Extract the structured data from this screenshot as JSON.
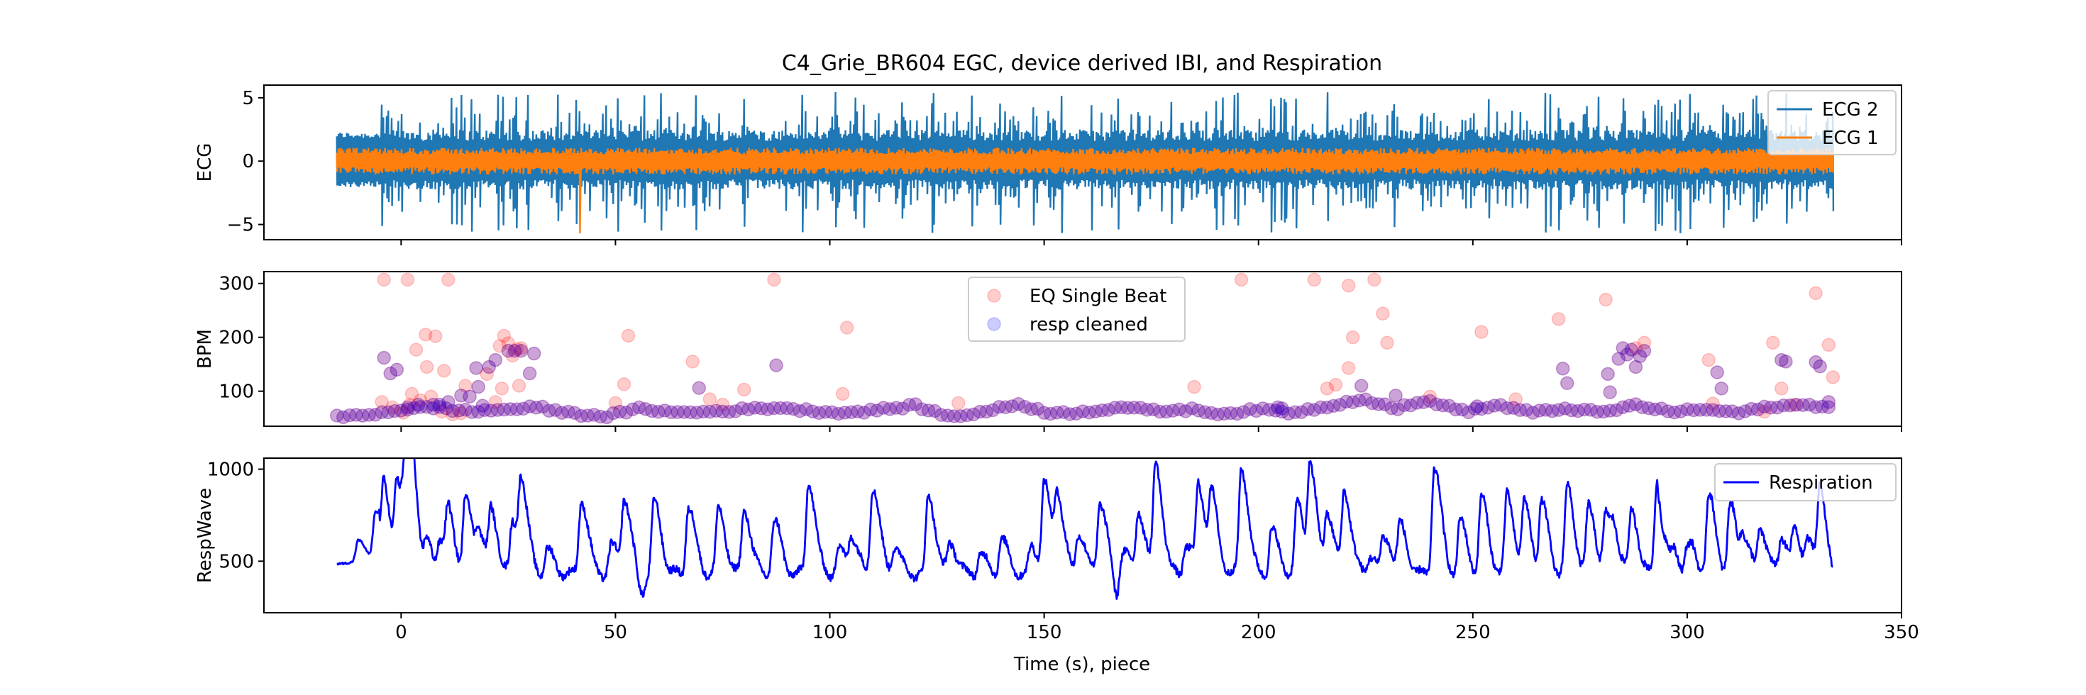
{
  "chart_data": {
    "type": "line",
    "title": "C4_Grie_BR604 EGC, device derived IBI, and Respiration",
    "xlabel": "Time (s), piece",
    "xlim": [
      -32,
      350
    ],
    "xticks": [
      0,
      50,
      100,
      150,
      200,
      250,
      300,
      350
    ],
    "xtick_labels": [
      "0",
      "50",
      "100",
      "150",
      "200",
      "250",
      "300",
      "350"
    ],
    "panels": [
      {
        "key": "ecg",
        "type": "line",
        "ylabel": "ECG",
        "ylim": [
          -6.2,
          6.0
        ],
        "yticks": [
          5,
          0,
          -5
        ],
        "ytick_labels": [
          "5",
          "0",
          "−5"
        ],
        "legend_position": "top-right",
        "series": [
          {
            "name": "ECG 2",
            "color": "#1f77b4",
            "x_range": [
              -15,
              334
            ],
            "typical_min": -1.8,
            "typical_max": 2.0,
            "peak_min": -5.7,
            "peak_max": 5.5,
            "samples": 900
          },
          {
            "name": "ECG 1",
            "color": "#ff7f0e",
            "x_range": [
              -15,
              334
            ],
            "typical_min": -1.0,
            "typical_max": 1.0,
            "spike": {
              "x": 41.5,
              "y": -5.7
            },
            "samples": 900
          }
        ]
      },
      {
        "key": "bpm",
        "type": "scatter",
        "ylabel": "BPM",
        "ylim": [
          35,
          322
        ],
        "yticks": [
          300,
          200,
          100
        ],
        "ytick_labels": [
          "300",
          "200",
          "100"
        ],
        "legend_position": "top-center",
        "series": [
          {
            "name": "EQ Single Beat",
            "color": "#ff0000",
            "alpha": 0.2,
            "x": [
              -4,
              1.5,
              11,
              3.5,
              5.7,
              8,
              6,
              -4.5,
              -2,
              2.5,
              7,
              9.5,
              0.5,
              4.5,
              2.0,
              10,
              12,
              14,
              15,
              20,
              23,
              24,
              25,
              26,
              27,
              28,
              22,
              23.5,
              27.5,
              52,
              53,
              50,
              68,
              72,
              75,
              80,
              87,
              104,
              103,
              130,
              185,
              196,
              213,
              221,
              227,
              229,
              230,
              222,
              240,
              252,
              221,
              218,
              216,
              260,
              270,
              281,
              288,
              290,
              305,
              306,
              318,
              320,
              322,
              330,
              333,
              334,
              325
            ],
            "y": [
              307,
              307,
              307,
              177,
              205,
              202,
              145,
              80,
              70,
              95,
              90,
              62,
              60,
              83,
              75,
              138,
              57,
              59,
              110,
              132,
              184,
              203,
              189,
              166,
              178,
              180,
              80,
              105,
              110,
              113,
              203,
              78,
              155,
              85,
              75,
              103,
              307,
              218,
              95,
              78,
              108,
              307,
              307,
              296,
              307,
              244,
              190,
              200,
              90,
              210,
              143,
              112,
              105,
              85,
              234,
              270,
              180,
              190,
              158,
              77,
              62,
              190,
              105,
              282,
              186,
              126,
              75
            ]
          },
          {
            "name": "resp cleaned",
            "color": "#0000ff",
            "alpha": 0.2,
            "x": [
              -4,
              -2.5,
              -1,
              1.5,
              4,
              7.5,
              9,
              11,
              14,
              16,
              17.5,
              18,
              19,
              20.5,
              22,
              25,
              26.5,
              28,
              30,
              31,
              69.5,
              87.5,
              204.5,
              205.5,
              224,
              232,
              251,
              271,
              272,
              281.5,
              282,
              284,
              285,
              286,
              287,
              288,
              289,
              290,
              307,
              308,
              322,
              323,
              330,
              331,
              333
            ],
            "y": [
              162,
              133,
              140,
              70,
              75,
              75,
              75,
              80,
              92,
              90,
              143,
              108,
              73,
              145,
              158,
              175,
              175,
              175,
              133,
              170,
              106,
              148,
              70,
              68,
              110,
              92,
              72,
              142,
              115,
              132,
              98,
              160,
              180,
              168,
              177,
              145,
              165,
              175,
              135,
              105,
              158,
              155,
              154,
              146,
              80
            ],
            "baseline": {
              "x": [
                -15,
                -8,
                0,
                8,
                16,
                24,
                32,
                40,
                48,
                56,
                64,
                72,
                80,
                88,
                96,
                104,
                112,
                120,
                128,
                136,
                144,
                152,
                160,
                168,
                176,
                184,
                192,
                200,
                208,
                216,
                224,
                232,
                240,
                248,
                256,
                264,
                272,
                280,
                288,
                296,
                304,
                312,
                320,
                328,
                334
              ],
              "y": [
                52,
                56,
                66,
                70,
                62,
                66,
                70,
                58,
                54,
                68,
                60,
                62,
                66,
                70,
                63,
                60,
                66,
                73,
                52,
                62,
                76,
                58,
                62,
                71,
                63,
                66,
                58,
                66,
                60,
                72,
                86,
                68,
                82,
                62,
                74,
                60,
                68,
                60,
                74,
                62,
                66,
                60,
                72,
                74,
                72
              ],
              "spacing": 1.5,
              "amplitude": 10
            }
          }
        ]
      },
      {
        "key": "resp",
        "type": "line",
        "ylabel": "RespWave",
        "ylim": [
          220,
          1060
        ],
        "yticks": [
          1000,
          500
        ],
        "ytick_labels": [
          "1000",
          "500"
        ],
        "legend_position": "top-right",
        "series": [
          {
            "name": "Respiration",
            "color": "#0000ff",
            "baseline": 430,
            "x_range": [
              -15,
              334
            ],
            "peaks": [
              {
                "x": -10,
                "y": 550
              },
              {
                "x": -6,
                "y": 690
              },
              {
                "x": -4,
                "y": 810
              },
              {
                "x": -1,
                "y": 915
              },
              {
                "x": 1,
                "y": 800
              },
              {
                "x": 2,
                "y": 1020
              },
              {
                "x": 6,
                "y": 585
              },
              {
                "x": 9,
                "y": 600
              },
              {
                "x": 11,
                "y": 720
              },
              {
                "x": 15,
                "y": 840
              },
              {
                "x": 18,
                "y": 650
              },
              {
                "x": 21,
                "y": 745
              },
              {
                "x": 26,
                "y": 700
              },
              {
                "x": 28,
                "y": 870
              },
              {
                "x": 34,
                "y": 560
              },
              {
                "x": 42,
                "y": 835
              },
              {
                "x": 49,
                "y": 585
              },
              {
                "x": 52,
                "y": 830
              },
              {
                "x": 59,
                "y": 820
              },
              {
                "x": 67,
                "y": 800
              },
              {
                "x": 74,
                "y": 780
              },
              {
                "x": 80,
                "y": 780
              },
              {
                "x": 87,
                "y": 720
              },
              {
                "x": 95,
                "y": 935
              },
              {
                "x": 102,
                "y": 570
              },
              {
                "x": 105,
                "y": 630
              },
              {
                "x": 110,
                "y": 910
              },
              {
                "x": 115,
                "y": 580
              },
              {
                "x": 123,
                "y": 860
              },
              {
                "x": 128,
                "y": 600
              },
              {
                "x": 135,
                "y": 540
              },
              {
                "x": 140,
                "y": 620
              },
              {
                "x": 147,
                "y": 580
              },
              {
                "x": 150,
                "y": 910
              },
              {
                "x": 153,
                "y": 840
              },
              {
                "x": 158,
                "y": 660
              },
              {
                "x": 163,
                "y": 830
              },
              {
                "x": 168,
                "y": 600
              },
              {
                "x": 172,
                "y": 770
              },
              {
                "x": 176,
                "y": 1020
              },
              {
                "x": 183,
                "y": 590
              },
              {
                "x": 186,
                "y": 900
              },
              {
                "x": 189,
                "y": 820
              },
              {
                "x": 196,
                "y": 1010
              },
              {
                "x": 203,
                "y": 670
              },
              {
                "x": 209,
                "y": 810
              },
              {
                "x": 212,
                "y": 990
              },
              {
                "x": 216,
                "y": 760
              },
              {
                "x": 220,
                "y": 875
              },
              {
                "x": 226,
                "y": 540
              },
              {
                "x": 229,
                "y": 730
              },
              {
                "x": 233,
                "y": 690
              },
              {
                "x": 241,
                "y": 1015
              },
              {
                "x": 247,
                "y": 715
              },
              {
                "x": 252,
                "y": 840
              },
              {
                "x": 258,
                "y": 860
              },
              {
                "x": 262,
                "y": 800
              },
              {
                "x": 266,
                "y": 810
              },
              {
                "x": 272,
                "y": 900
              },
              {
                "x": 277,
                "y": 790
              },
              {
                "x": 281,
                "y": 740
              },
              {
                "x": 283,
                "y": 580
              },
              {
                "x": 287,
                "y": 760
              },
              {
                "x": 293,
                "y": 1020
              },
              {
                "x": 297,
                "y": 540
              },
              {
                "x": 300,
                "y": 660
              },
              {
                "x": 305,
                "y": 850
              },
              {
                "x": 310,
                "y": 800
              },
              {
                "x": 313,
                "y": 620
              },
              {
                "x": 317,
                "y": 680
              },
              {
                "x": 322,
                "y": 640
              },
              {
                "x": 325,
                "y": 630
              },
              {
                "x": 328,
                "y": 610
              },
              {
                "x": 331,
                "y": 890
              }
            ],
            "dips": [
              {
                "x": 56,
                "y": 320
              },
              {
                "x": 167,
                "y": 270
              },
              {
                "x": 229,
                "y": 300
              },
              {
                "x": 294,
                "y": 250
              },
              {
                "x": 300,
                "y": 330
              },
              {
                "x": 334,
                "y": 360
              }
            ]
          }
        ]
      }
    ]
  }
}
